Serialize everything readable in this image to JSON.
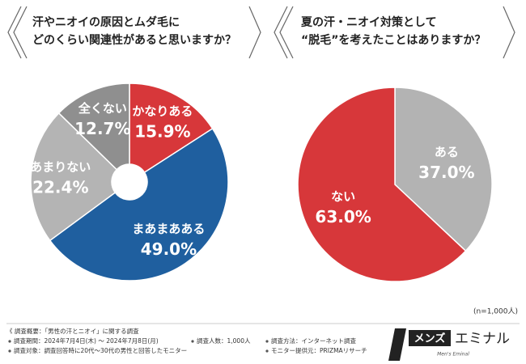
{
  "chart_data": [
    {
      "type": "donut",
      "title": [
        "汗やニオイの原因とムダ毛に",
        "どのくらい関連性があると思いますか？"
      ],
      "categories": [
        "かなりある",
        "まあまあある",
        "あまりない",
        "全くない"
      ],
      "values": [
        15.9,
        49.0,
        22.4,
        12.7
      ],
      "value_labels": [
        "15.9%",
        "49.0%",
        "22.4%",
        "12.7%"
      ],
      "colors": [
        "#d7373a",
        "#1f5f9f",
        "#b4b4b4",
        "#8f8f8f"
      ]
    },
    {
      "type": "pie",
      "title": [
        "夏の汗・ニオイ対策として",
        "“脱毛”を考えたことはありますか？"
      ],
      "categories": [
        "ある",
        "ない"
      ],
      "values": [
        37.0,
        63.0
      ],
      "value_labels": [
        "37.0%",
        "63.0%"
      ],
      "colors": [
        "#b3b3b3",
        "#d7373a"
      ]
    }
  ],
  "sample_note": "(n=1,000人)",
  "survey": {
    "heading": "《 調査概要：「男性の汗とニオイ」に関する調査",
    "items": [
      "調査期間：2024年7月4日(木) ～ 2024年7月8日(月)",
      "調査人数：1,000人",
      "調査方法：インターネット調査",
      "調査対象：調査回答時に20代～30代の男性と回答したモニター",
      "モニター提供元：PRIZMAリサーチ"
    ]
  },
  "logo": {
    "brand_a": "メンズ",
    "brand_b": "エミナル",
    "sub": "Men's Eminal"
  }
}
